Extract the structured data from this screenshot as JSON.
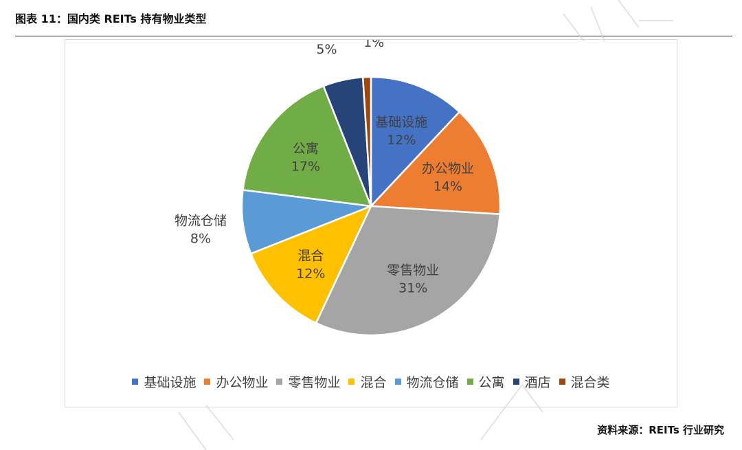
{
  "figure": {
    "title": "图表 11：国内类 REITs 持有物业类型",
    "source": "资料来源：REITs 行业研究"
  },
  "chart_data": {
    "type": "pie",
    "title": "",
    "categories": [
      "基础设施",
      "办公物业",
      "零售物业",
      "混合",
      "物流仓储",
      "公寓",
      "酒店",
      "混合类"
    ],
    "values": [
      12,
      14,
      31,
      12,
      8,
      17,
      5,
      1
    ],
    "labels": [
      "12%",
      "14%",
      "31%",
      "12%",
      "8%",
      "17%",
      "5%",
      "1%"
    ],
    "unit": "%",
    "colors": [
      "#4472C4",
      "#ED7D31",
      "#A5A5A5",
      "#FFC000",
      "#5B9BD5",
      "#70AD47",
      "#264478",
      "#9E480E"
    ],
    "start_angle_deg": 0,
    "direction": "clockwise",
    "legend": {
      "position": "bottom"
    },
    "label_placement": [
      "inside",
      "inside",
      "inside",
      "inside",
      "outside",
      "inside",
      "outside",
      "outside"
    ]
  }
}
